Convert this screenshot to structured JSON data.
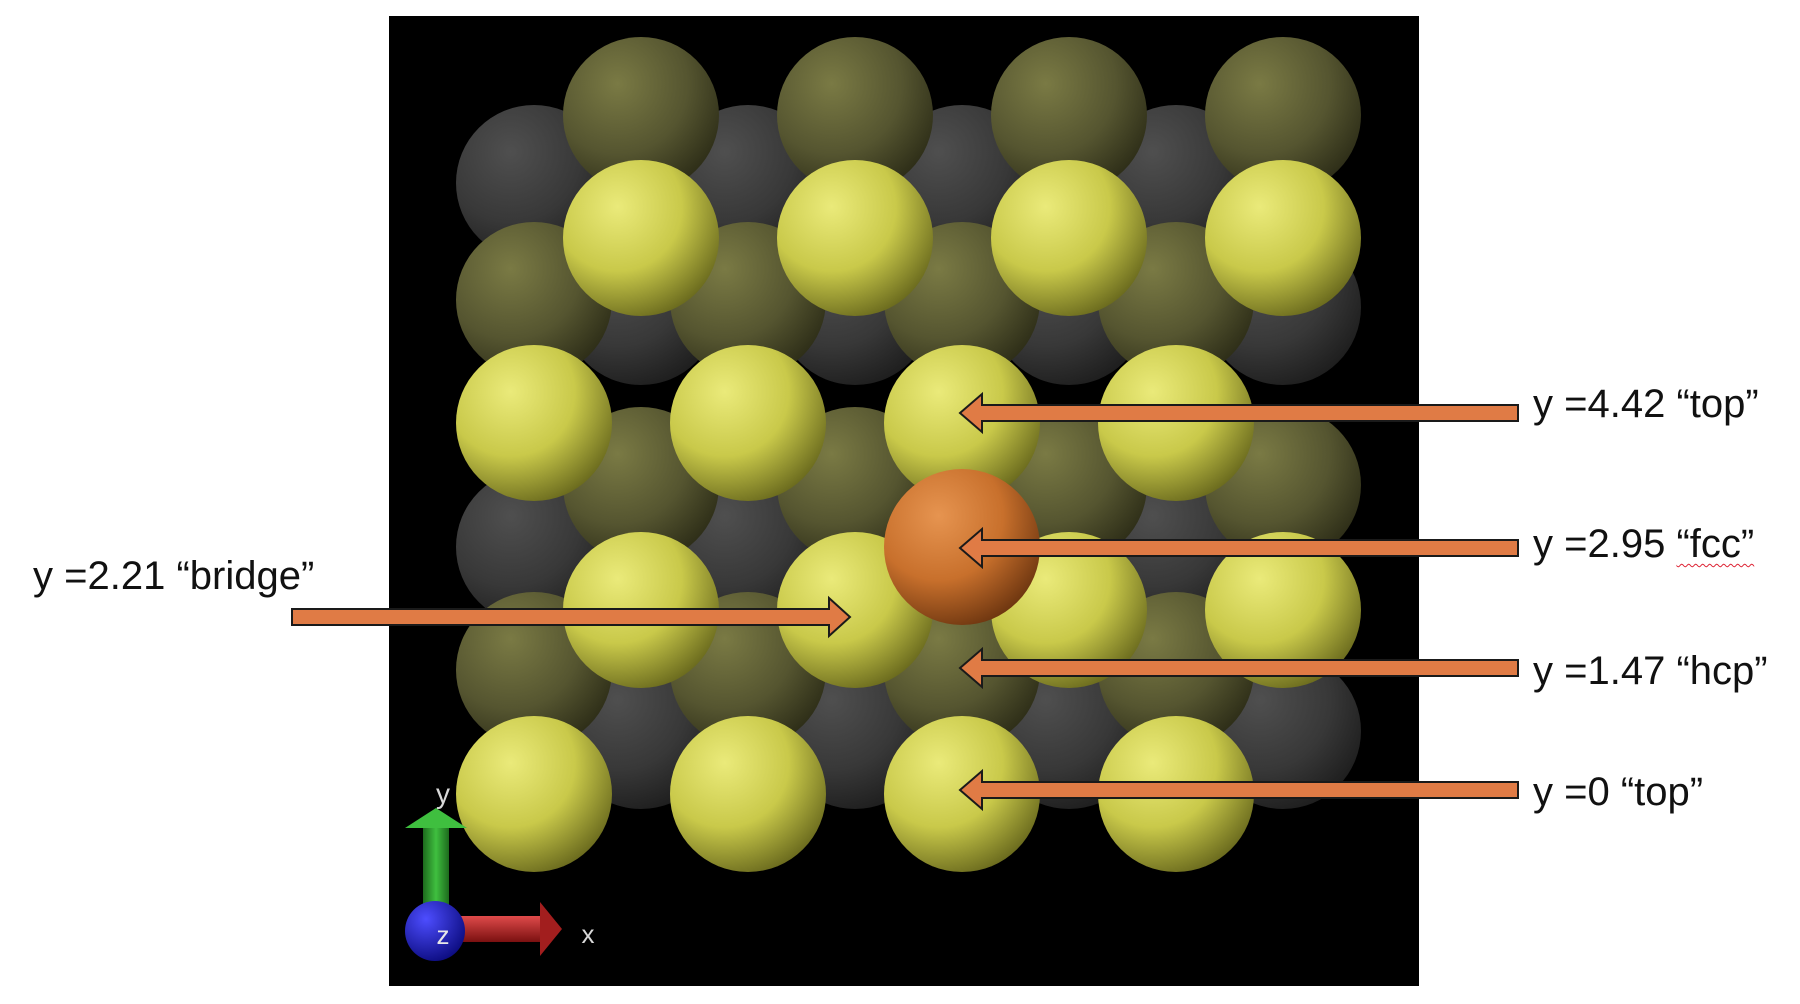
{
  "colors": {
    "background": "#ffffff",
    "viewport": "#000000",
    "top_layer_atom": "#c9c94a",
    "second_layer_atom": "#5a5a2e",
    "third_layer_atom": "#3a3a3a",
    "adsorbate_atom": "#c8702c",
    "arrow_fill": "#e07b45",
    "arrow_stroke": "#1a1a1a",
    "axis_x": "#b22222",
    "axis_y": "#2e9b2e",
    "axis_z": "#1a1acc"
  },
  "axes": {
    "x_label": "x",
    "y_label": "y",
    "z_label": "z"
  },
  "sites": [
    {
      "y": 4.42,
      "prefix": "y =4.42 ",
      "site": "“top”"
    },
    {
      "y": 2.95,
      "prefix": "y =2.95 ",
      "site": "“fcc”"
    },
    {
      "y": 1.47,
      "prefix": "y =1.47 ",
      "site": "“hcp”"
    },
    {
      "y": 0,
      "prefix": "y =0 ",
      "site": "“top”"
    },
    {
      "y": 2.21,
      "prefix": "y =2.21 ",
      "site": "“bridge”"
    }
  ]
}
